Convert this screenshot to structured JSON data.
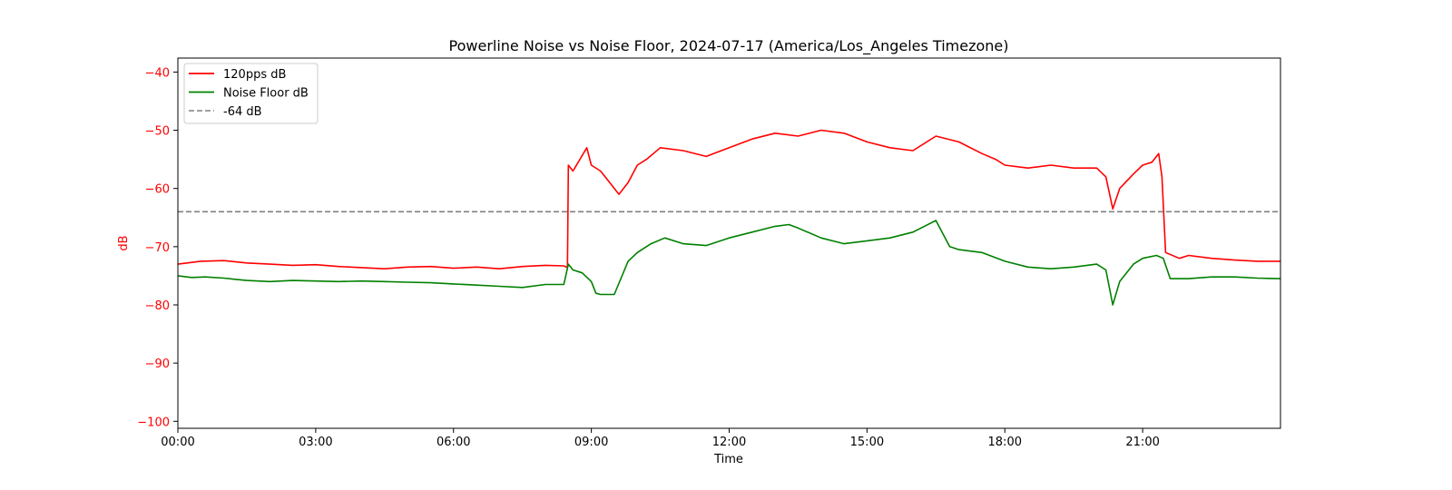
{
  "chart_data": {
    "type": "line",
    "title": "Powerline Noise vs Noise Floor, 2024-07-17 (America/Los_Angeles Timezone)",
    "xlabel": "Time",
    "ylabel": "dB",
    "xlim": [
      0,
      24
    ],
    "ylim": [
      -101.2,
      -37.6
    ],
    "x_ticks": [
      {
        "value": 0,
        "label": "00:00"
      },
      {
        "value": 3,
        "label": "03:00"
      },
      {
        "value": 6,
        "label": "06:00"
      },
      {
        "value": 9,
        "label": "09:00"
      },
      {
        "value": 12,
        "label": "12:00"
      },
      {
        "value": 15,
        "label": "15:00"
      },
      {
        "value": 18,
        "label": "18:00"
      },
      {
        "value": 21,
        "label": "21:00"
      }
    ],
    "y_ticks": [
      {
        "value": -40,
        "label": "−40"
      },
      {
        "value": -50,
        "label": "−50"
      },
      {
        "value": -60,
        "label": "−60"
      },
      {
        "value": -70,
        "label": "−70"
      },
      {
        "value": -80,
        "label": "−80"
      },
      {
        "value": -90,
        "label": "−90"
      },
      {
        "value": -100,
        "label": "−100"
      }
    ],
    "ylabel_color": "#ff0000",
    "ytick_color": "#ff0000",
    "grid": false,
    "legend_position": "upper-left",
    "threshold": {
      "name": "-64 dB",
      "value": -64,
      "color": "#808080",
      "style": "dashed"
    },
    "series": [
      {
        "name": "120pps dB",
        "color": "#ff0000",
        "x": [
          0,
          0.5,
          1,
          1.5,
          2,
          2.5,
          3,
          3.5,
          4,
          4.5,
          5,
          5.5,
          6,
          6.5,
          7,
          7.5,
          8,
          8.4,
          8.48,
          8.5,
          8.6,
          8.75,
          8.9,
          9.0,
          9.2,
          9.4,
          9.6,
          9.8,
          10.0,
          10.2,
          10.5,
          11.0,
          11.5,
          12.0,
          12.5,
          13.0,
          13.5,
          14.0,
          14.5,
          15.0,
          15.5,
          16.0,
          16.5,
          17.0,
          17.5,
          17.8,
          18.0,
          18.5,
          19.0,
          19.5,
          20.0,
          20.2,
          20.35,
          20.5,
          20.8,
          21.0,
          21.2,
          21.35,
          21.42,
          21.5,
          21.8,
          22.0,
          22.5,
          23.0,
          23.5,
          24.0
        ],
        "y": [
          -73,
          -72.5,
          -72.4,
          -72.8,
          -73,
          -73.2,
          -73.1,
          -73.4,
          -73.6,
          -73.8,
          -73.5,
          -73.4,
          -73.7,
          -73.5,
          -73.8,
          -73.4,
          -73.2,
          -73.3,
          -73.6,
          -56,
          -57,
          -55,
          -53,
          -56,
          -57,
          -59,
          -61,
          -59,
          -56,
          -55,
          -53,
          -53.5,
          -54.5,
          -53,
          -51.5,
          -50.5,
          -51,
          -50,
          -50.5,
          -52,
          -53,
          -53.5,
          -51,
          -52,
          -54,
          -55,
          -56,
          -56.5,
          -56,
          -56.5,
          -56.5,
          -58,
          -63.5,
          -60,
          -57.5,
          -56,
          -55.5,
          -54,
          -58,
          -71,
          -72,
          -71.5,
          -72,
          -72.3,
          -72.5,
          -72.5
        ]
      },
      {
        "name": "Noise Floor dB",
        "color": "#008000",
        "x": [
          0,
          0.3,
          0.6,
          1,
          1.5,
          2,
          2.5,
          3,
          3.5,
          4,
          4.5,
          5,
          5.5,
          6,
          6.5,
          7,
          7.5,
          8,
          8.4,
          8.5,
          8.6,
          8.8,
          9.0,
          9.1,
          9.2,
          9.5,
          9.8,
          10.0,
          10.3,
          10.6,
          11.0,
          11.5,
          12.0,
          12.5,
          13.0,
          13.3,
          13.5,
          14.0,
          14.5,
          15.0,
          15.5,
          16.0,
          16.5,
          16.8,
          17.0,
          17.5,
          18.0,
          18.5,
          19.0,
          19.5,
          20.0,
          20.2,
          20.35,
          20.5,
          20.8,
          21.0,
          21.3,
          21.45,
          21.6,
          22.0,
          22.5,
          23.0,
          23.5,
          24.0
        ],
        "y": [
          -75,
          -75.3,
          -75.2,
          -75.4,
          -75.8,
          -76,
          -75.8,
          -75.9,
          -76,
          -75.9,
          -76,
          -76.1,
          -76.2,
          -76.4,
          -76.6,
          -76.8,
          -77,
          -76.5,
          -76.5,
          -73,
          -74,
          -74.5,
          -76,
          -78,
          -78.2,
          -78.2,
          -72.5,
          -71,
          -69.5,
          -68.5,
          -69.5,
          -69.8,
          -68.5,
          -67.5,
          -66.5,
          -66.2,
          -66.8,
          -68.5,
          -69.5,
          -69,
          -68.5,
          -67.5,
          -65.5,
          -70,
          -70.5,
          -71,
          -72.5,
          -73.5,
          -73.8,
          -73.5,
          -73,
          -74,
          -80,
          -76,
          -73,
          -72,
          -71.5,
          -72,
          -75.5,
          -75.5,
          -75.2,
          -75.2,
          -75.4,
          -75.5
        ]
      }
    ]
  }
}
